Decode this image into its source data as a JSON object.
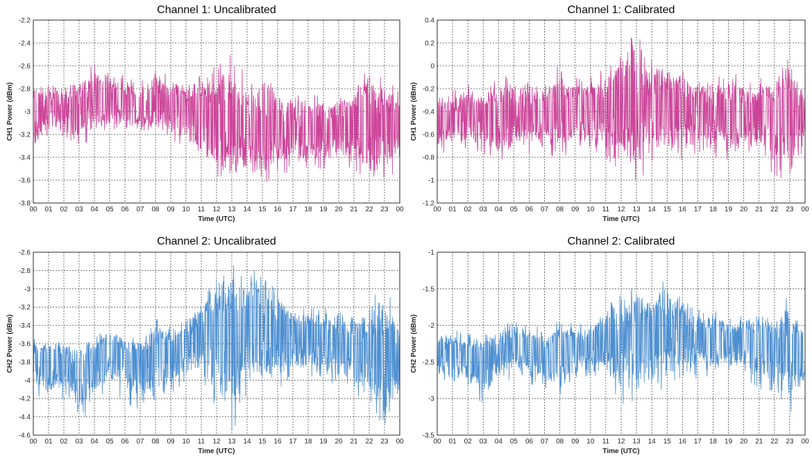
{
  "chart_data": [
    {
      "type": "line",
      "title": "Channel 1: Uncalibrated",
      "xlabel": "Time (UTC)",
      "ylabel": "CH1 Power (dBm)",
      "xlim": [
        0,
        24
      ],
      "ylim": [
        -3.8,
        -2.2
      ],
      "x_ticks": [
        "00",
        "01",
        "02",
        "03",
        "04",
        "05",
        "06",
        "07",
        "08",
        "09",
        "10",
        "11",
        "12",
        "13",
        "14",
        "15",
        "16",
        "17",
        "18",
        "19",
        "20",
        "21",
        "22",
        "23",
        "00"
      ],
      "y_ticks": [
        "-3.8",
        "-3.6",
        "-3.4",
        "-3.2",
        "-3",
        "-2.8",
        "-2.6",
        "-2.4",
        "-2.2"
      ],
      "grid": true,
      "color": "#cc4499",
      "series": [
        {
          "x": [
            0,
            1,
            2,
            3,
            4,
            5,
            6,
            7,
            8,
            9,
            10,
            11,
            12,
            13,
            14,
            15,
            16,
            17,
            18,
            19,
            20,
            21,
            22,
            23,
            24
          ],
          "center": [
            -3.02,
            -2.97,
            -2.98,
            -2.96,
            -2.94,
            -2.91,
            -2.93,
            -2.96,
            -2.93,
            -2.92,
            -2.95,
            -3.0,
            -3.05,
            -3.08,
            -3.1,
            -3.12,
            -3.13,
            -3.15,
            -3.17,
            -3.16,
            -3.14,
            -3.12,
            -3.1,
            -3.1,
            -3.1
          ],
          "upper": [
            -2.72,
            -2.78,
            -2.76,
            -2.72,
            -2.55,
            -2.6,
            -2.7,
            -2.75,
            -2.58,
            -2.72,
            -2.76,
            -2.68,
            -2.6,
            -2.45,
            -2.72,
            -2.72,
            -2.78,
            -2.85,
            -2.88,
            -2.83,
            -2.82,
            -2.78,
            -2.55,
            -2.75,
            -2.78
          ],
          "lower": [
            -3.35,
            -3.22,
            -3.2,
            -3.33,
            -3.2,
            -3.14,
            -3.18,
            -3.2,
            -3.18,
            -3.25,
            -3.3,
            -3.4,
            -3.58,
            -3.68,
            -3.52,
            -3.65,
            -3.52,
            -3.55,
            -3.48,
            -3.5,
            -3.46,
            -3.5,
            -3.62,
            -3.68,
            -3.42
          ]
        }
      ]
    },
    {
      "type": "line",
      "title": "Channel 1: Calibrated",
      "xlabel": "Time (UTC)",
      "ylabel": "CH1 Power (dBm)",
      "xlim": [
        0,
        24
      ],
      "ylim": [
        -1.2,
        0.4
      ],
      "x_ticks": [
        "00",
        "01",
        "02",
        "03",
        "04",
        "05",
        "06",
        "07",
        "08",
        "09",
        "10",
        "11",
        "12",
        "13",
        "14",
        "15",
        "16",
        "17",
        "18",
        "19",
        "20",
        "21",
        "22",
        "23",
        "00"
      ],
      "y_ticks": [
        "-1.2",
        "-1",
        "-0.8",
        "-0.6",
        "-0.4",
        "-0.2",
        "0",
        "0.2",
        "0.4"
      ],
      "grid": true,
      "color": "#cc4499",
      "series": [
        {
          "x": [
            0,
            1,
            2,
            3,
            4,
            5,
            6,
            7,
            8,
            9,
            10,
            11,
            12,
            13,
            14,
            15,
            16,
            17,
            18,
            19,
            20,
            21,
            22,
            23,
            24
          ],
          "center": [
            -0.48,
            -0.45,
            -0.45,
            -0.43,
            -0.45,
            -0.42,
            -0.41,
            -0.42,
            -0.38,
            -0.36,
            -0.37,
            -0.35,
            -0.33,
            -0.3,
            -0.34,
            -0.35,
            -0.37,
            -0.38,
            -0.4,
            -0.41,
            -0.4,
            -0.4,
            -0.38,
            -0.4,
            -0.4
          ],
          "upper": [
            -0.2,
            -0.22,
            -0.18,
            -0.2,
            -0.05,
            -0.08,
            -0.12,
            -0.15,
            0.02,
            -0.12,
            -0.1,
            0.0,
            0.18,
            0.28,
            0.05,
            0.08,
            -0.05,
            -0.1,
            -0.12,
            -0.05,
            -0.1,
            -0.1,
            -0.18,
            0.12,
            -0.2
          ],
          "lower": [
            -0.78,
            -0.72,
            -0.72,
            -0.76,
            -0.85,
            -0.8,
            -0.76,
            -0.78,
            -0.82,
            -0.72,
            -0.74,
            -0.8,
            -0.95,
            -1.0,
            -0.9,
            -0.82,
            -0.82,
            -0.8,
            -0.8,
            -0.82,
            -0.8,
            -0.84,
            -0.95,
            -1.02,
            -0.75
          ]
        }
      ]
    },
    {
      "type": "line",
      "title": "Channel 2: Uncalibrated",
      "xlabel": "Time (UTC)",
      "ylabel": "CH2 Power (dBm)",
      "xlim": [
        0,
        24
      ],
      "ylim": [
        -4.6,
        -2.6
      ],
      "x_ticks": [
        "00",
        "01",
        "02",
        "03",
        "04",
        "05",
        "06",
        "07",
        "08",
        "09",
        "10",
        "11",
        "12",
        "13",
        "14",
        "15",
        "16",
        "17",
        "18",
        "19",
        "20",
        "21",
        "22",
        "23",
        "00"
      ],
      "y_ticks": [
        "-4.6",
        "-4.4",
        "-4.2",
        "-4",
        "-3.8",
        "-3.6",
        "-3.4",
        "-3.2",
        "-3",
        "-2.8",
        "-2.6"
      ],
      "grid": true,
      "color": "#4d8fd1",
      "series": [
        {
          "x": [
            0,
            1,
            2,
            3,
            4,
            5,
            6,
            7,
            8,
            9,
            10,
            11,
            12,
            13,
            14,
            15,
            16,
            17,
            18,
            19,
            20,
            21,
            22,
            23,
            24
          ],
          "center": [
            -3.75,
            -3.75,
            -3.8,
            -3.92,
            -3.78,
            -3.6,
            -3.75,
            -3.82,
            -3.7,
            -3.65,
            -3.6,
            -3.45,
            -3.42,
            -3.4,
            -3.35,
            -3.38,
            -3.42,
            -3.45,
            -3.5,
            -3.55,
            -3.6,
            -3.62,
            -3.65,
            -3.72,
            -3.75
          ],
          "upper": [
            -3.55,
            -3.55,
            -3.55,
            -3.6,
            -3.5,
            -3.38,
            -3.52,
            -3.55,
            -3.32,
            -3.42,
            -3.35,
            -3.12,
            -2.9,
            -2.72,
            -2.95,
            -2.62,
            -3.0,
            -3.18,
            -3.22,
            -3.2,
            -3.22,
            -3.22,
            -3.2,
            -2.85,
            -3.35
          ],
          "lower": [
            -4.1,
            -4.25,
            -4.2,
            -4.5,
            -4.25,
            -4.05,
            -4.25,
            -4.32,
            -4.32,
            -4.15,
            -4.0,
            -4.1,
            -4.4,
            -4.55,
            -4.3,
            -4.1,
            -4.12,
            -4.05,
            -4.0,
            -4.0,
            -4.05,
            -4.12,
            -4.3,
            -4.5,
            -4.3
          ]
        }
      ]
    },
    {
      "type": "line",
      "title": "Channel 2: Calibrated",
      "xlabel": "Time (UTC)",
      "ylabel": "CH2 Power (dBm)",
      "xlim": [
        0,
        24
      ],
      "ylim": [
        -3.5,
        -1
      ],
      "x_ticks": [
        "00",
        "01",
        "02",
        "03",
        "04",
        "05",
        "06",
        "07",
        "08",
        "09",
        "10",
        "11",
        "12",
        "13",
        "14",
        "15",
        "16",
        "17",
        "18",
        "19",
        "20",
        "21",
        "22",
        "23",
        "00"
      ],
      "y_ticks": [
        "-3.5",
        "-3",
        "-2.5",
        "-2",
        "-1.5",
        "-1"
      ],
      "grid": true,
      "color": "#4d8fd1",
      "series": [
        {
          "x": [
            0,
            1,
            2,
            3,
            4,
            5,
            6,
            7,
            8,
            9,
            10,
            11,
            12,
            13,
            14,
            15,
            16,
            17,
            18,
            19,
            20,
            21,
            22,
            23,
            24
          ],
          "center": [
            -2.35,
            -2.38,
            -2.4,
            -2.45,
            -2.35,
            -2.25,
            -2.35,
            -2.42,
            -2.32,
            -2.28,
            -2.25,
            -2.15,
            -2.12,
            -2.1,
            -2.08,
            -2.08,
            -2.12,
            -2.15,
            -2.15,
            -2.18,
            -2.2,
            -2.22,
            -2.22,
            -2.3,
            -2.3
          ],
          "upper": [
            -2.05,
            -2.05,
            -2.12,
            -2.12,
            -2.02,
            -1.88,
            -1.98,
            -2.05,
            -1.95,
            -1.98,
            -1.95,
            -1.75,
            -1.58,
            -1.45,
            -1.55,
            -1.35,
            -1.55,
            -1.78,
            -1.8,
            -1.85,
            -1.88,
            -1.88,
            -1.88,
            -1.55,
            -2.05
          ],
          "lower": [
            -2.7,
            -2.85,
            -2.8,
            -3.1,
            -2.85,
            -2.7,
            -2.82,
            -2.85,
            -3.0,
            -2.72,
            -2.68,
            -2.75,
            -3.05,
            -3.22,
            -2.92,
            -2.85,
            -2.78,
            -2.72,
            -2.68,
            -2.68,
            -2.72,
            -2.85,
            -3.05,
            -3.15,
            -2.9
          ]
        }
      ]
    }
  ]
}
